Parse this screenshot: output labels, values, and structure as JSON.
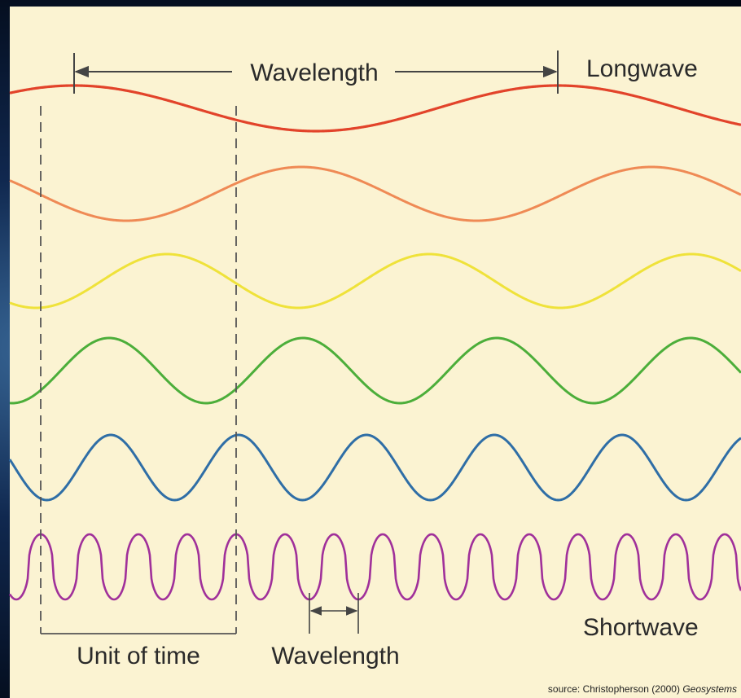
{
  "labels": {
    "top_wavelength": "Wavelength",
    "longwave": "Longwave",
    "shortwave": "Shortwave",
    "unit_of_time": "Unit of time",
    "bottom_wavelength": "Wavelength",
    "source_prefix": "source: Christopherson (2000) ",
    "source_title": "Geosystems"
  },
  "waves": [
    {
      "name": "red",
      "color": "#e2432a"
    },
    {
      "name": "orange",
      "color": "#ef8a55"
    },
    {
      "name": "yellow",
      "color": "#efe23a"
    },
    {
      "name": "green",
      "color": "#4cae3a"
    },
    {
      "name": "blue",
      "color": "#2f6ea6"
    },
    {
      "name": "violet",
      "color": "#a0309a"
    }
  ],
  "colors": {
    "paper": "#fbf3d2",
    "arrow": "#444444",
    "dashed": "#555555"
  }
}
